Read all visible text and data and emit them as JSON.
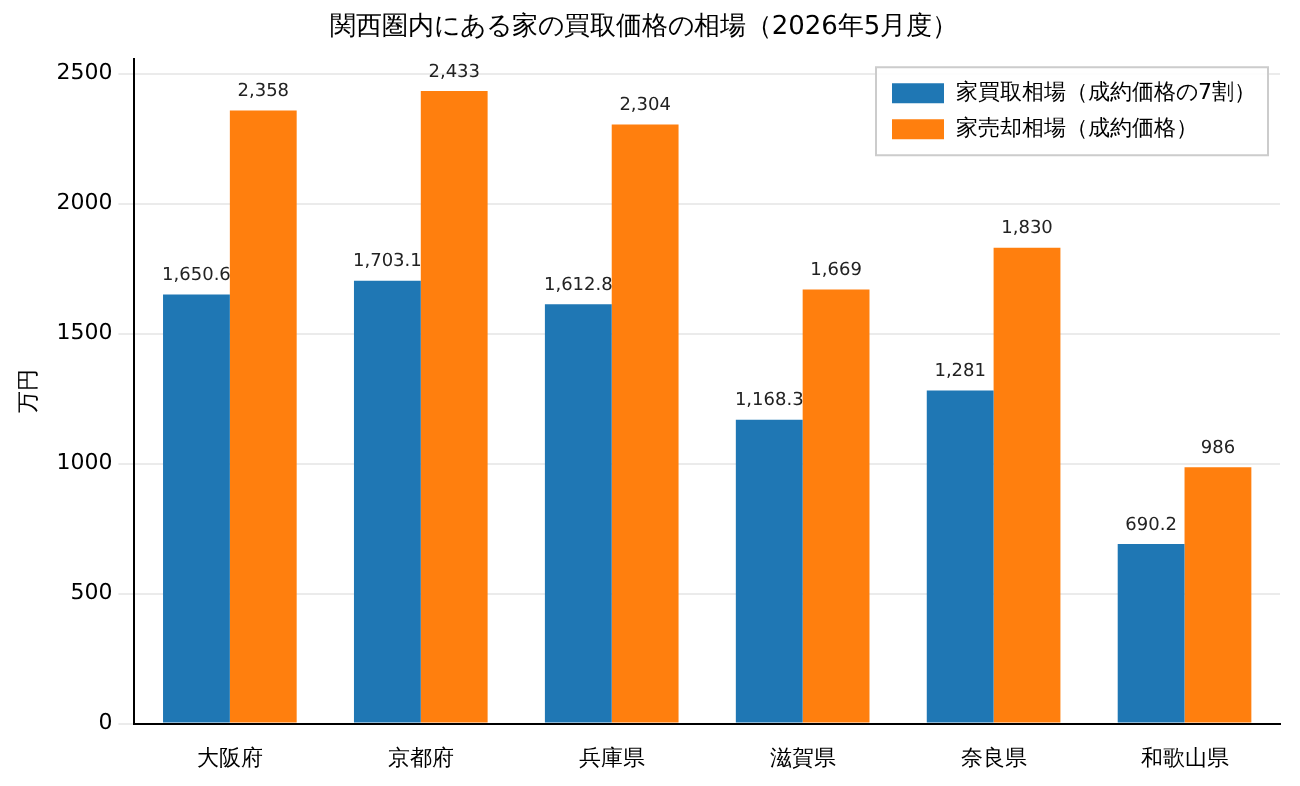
{
  "chart_data": {
    "type": "bar",
    "title": "関西圏内にある家の買取価格の相場（2026年5月度）",
    "ylabel": "万円",
    "categories": [
      "大阪府",
      "京都府",
      "兵庫県",
      "滋賀県",
      "奈良県",
      "和歌山県"
    ],
    "series": [
      {
        "name": "家買取相場（成約価格の7割）",
        "color": "#1f77b4",
        "values": [
          1650.6,
          1703.1,
          1612.8,
          1168.3,
          1281,
          690.2
        ],
        "value_labels": [
          "1,650.6",
          "1,703.1",
          "1,612.8",
          "1,168.3",
          "1,281",
          "690.2"
        ]
      },
      {
        "name": "家売却相場（成約価格）",
        "color": "#ff7f0e",
        "values": [
          2358,
          2433,
          2304,
          1669,
          1830,
          986
        ],
        "value_labels": [
          "2,358",
          "2,433",
          "2,304",
          "1,669",
          "1,830",
          "986"
        ]
      }
    ],
    "ylim": [
      0,
      2555
    ],
    "yticks": [
      0,
      500,
      1000,
      1500,
      2000,
      2500
    ],
    "grid": "y",
    "legend": "top right"
  }
}
